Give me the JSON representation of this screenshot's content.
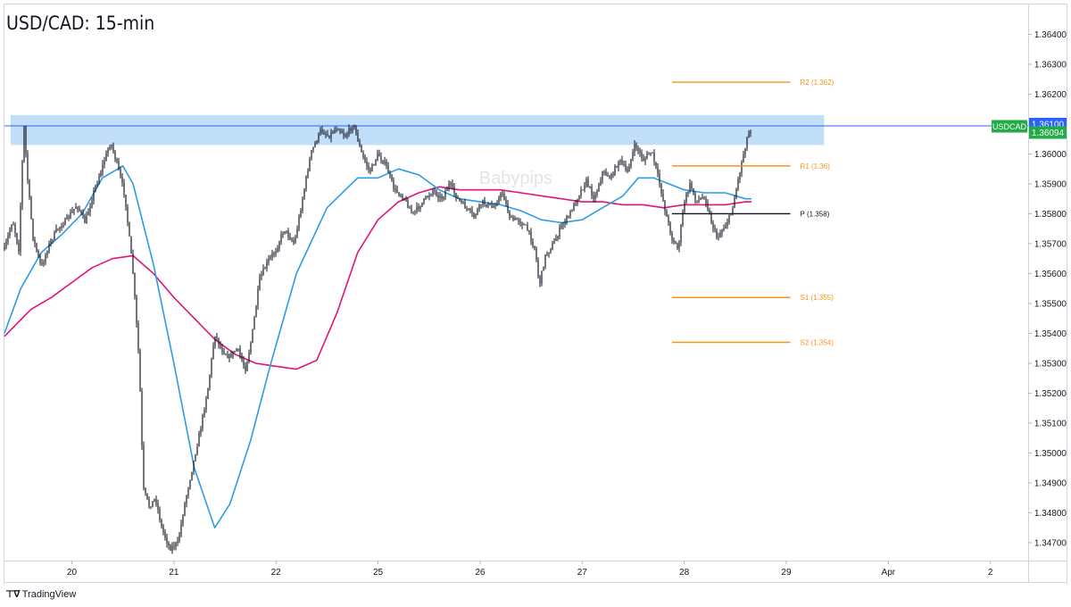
{
  "chart_data": {
    "type": "candlestick",
    "title": "USD/CAD: 15-min",
    "symbol": "USDCAD",
    "last_price": "1.36094",
    "range_high_label": "1.36100",
    "watermark": "Babypips",
    "y_ticks": [
      "1.36400",
      "1.36300",
      "1.36200",
      "1.36100",
      "1.36000",
      "1.35900",
      "1.35800",
      "1.35700",
      "1.35600",
      "1.35500",
      "1.35400",
      "1.35300",
      "1.35200",
      "1.35100",
      "1.35000",
      "1.34900",
      "1.34800",
      "1.34700"
    ],
    "y_tick_values": [
      1.364,
      1.363,
      1.362,
      1.361,
      1.36,
      1.359,
      1.358,
      1.357,
      1.356,
      1.355,
      1.354,
      1.353,
      1.352,
      1.351,
      1.35,
      1.349,
      1.348,
      1.347
    ],
    "ylim": [
      1.3464,
      1.365
    ],
    "x_ticks": [
      "20",
      "21",
      "22",
      "25",
      "26",
      "27",
      "28",
      "29",
      "Apr",
      "2"
    ],
    "x_tick_positions": [
      0,
      1,
      2,
      3,
      4,
      5,
      6,
      7,
      8,
      9
    ],
    "xlim": [
      -0.66,
      9.37
    ],
    "resistance_zone": [
      1.3603,
      1.3613
    ],
    "pivots": [
      {
        "label": "R2 (1.362)",
        "value": 1.3624,
        "color": "#f7931a"
      },
      {
        "label": "R1 (1.36)",
        "value": 1.3596,
        "color": "#f7931a"
      },
      {
        "label": "P (1.358)",
        "value": 1.358,
        "color": "#131722"
      },
      {
        "label": "S1 (1.355)",
        "value": 1.3552,
        "color": "#f7931a"
      },
      {
        "label": "S2 (1.354)",
        "value": 1.3537,
        "color": "#f7931a"
      }
    ],
    "pivot_x_range": [
      5.88,
      7.04
    ],
    "price_path": [
      [
        -0.66,
        1.3568
      ],
      [
        -0.58,
        1.3578
      ],
      [
        -0.52,
        1.3568
      ],
      [
        -0.47,
        1.361
      ],
      [
        -0.43,
        1.359
      ],
      [
        -0.38,
        1.3572
      ],
      [
        -0.3,
        1.3562
      ],
      [
        -0.22,
        1.357
      ],
      [
        -0.14,
        1.3575
      ],
      [
        -0.05,
        1.3578
      ],
      [
        0.05,
        1.3583
      ],
      [
        0.13,
        1.3577
      ],
      [
        0.22,
        1.3588
      ],
      [
        0.3,
        1.3596
      ],
      [
        0.38,
        1.3604
      ],
      [
        0.44,
        1.3597
      ],
      [
        0.52,
        1.3586
      ],
      [
        0.6,
        1.356
      ],
      [
        0.66,
        1.353
      ],
      [
        0.7,
        1.3488
      ],
      [
        0.76,
        1.3482
      ],
      [
        0.82,
        1.3485
      ],
      [
        0.88,
        1.3475
      ],
      [
        0.96,
        1.3468
      ],
      [
        1.04,
        1.347
      ],
      [
        1.1,
        1.3482
      ],
      [
        1.18,
        1.3495
      ],
      [
        1.26,
        1.3508
      ],
      [
        1.34,
        1.3523
      ],
      [
        1.4,
        1.354
      ],
      [
        1.46,
        1.3535
      ],
      [
        1.54,
        1.3532
      ],
      [
        1.62,
        1.3535
      ],
      [
        1.7,
        1.3528
      ],
      [
        1.76,
        1.3538
      ],
      [
        1.84,
        1.3558
      ],
      [
        1.92,
        1.3564
      ],
      [
        2.0,
        1.3568
      ],
      [
        2.08,
        1.3575
      ],
      [
        2.18,
        1.357
      ],
      [
        2.26,
        1.3585
      ],
      [
        2.34,
        1.36
      ],
      [
        2.44,
        1.3608
      ],
      [
        2.52,
        1.3606
      ],
      [
        2.6,
        1.3609
      ],
      [
        2.68,
        1.3606
      ],
      [
        2.76,
        1.361
      ],
      [
        2.84,
        1.36
      ],
      [
        2.92,
        1.3594
      ],
      [
        3.0,
        1.36
      ],
      [
        3.08,
        1.3596
      ],
      [
        3.16,
        1.3588
      ],
      [
        3.24,
        1.3586
      ],
      [
        3.34,
        1.358
      ],
      [
        3.44,
        1.3584
      ],
      [
        3.54,
        1.3588
      ],
      [
        3.62,
        1.3585
      ],
      [
        3.7,
        1.359
      ],
      [
        3.78,
        1.3585
      ],
      [
        3.86,
        1.3582
      ],
      [
        3.94,
        1.3579
      ],
      [
        4.02,
        1.3584
      ],
      [
        4.12,
        1.3582
      ],
      [
        4.22,
        1.3587
      ],
      [
        4.3,
        1.3578
      ],
      [
        4.38,
        1.3578
      ],
      [
        4.46,
        1.3575
      ],
      [
        4.54,
        1.3568
      ],
      [
        4.58,
        1.3556
      ],
      [
        4.64,
        1.3566
      ],
      [
        4.72,
        1.357
      ],
      [
        4.8,
        1.3576
      ],
      [
        4.88,
        1.358
      ],
      [
        4.96,
        1.3586
      ],
      [
        5.04,
        1.3591
      ],
      [
        5.12,
        1.3585
      ],
      [
        5.2,
        1.3594
      ],
      [
        5.28,
        1.3592
      ],
      [
        5.36,
        1.3598
      ],
      [
        5.44,
        1.3594
      ],
      [
        5.52,
        1.3603
      ],
      [
        5.6,
        1.3598
      ],
      [
        5.68,
        1.3601
      ],
      [
        5.76,
        1.359
      ],
      [
        5.82,
        1.358
      ],
      [
        5.88,
        1.3572
      ],
      [
        5.94,
        1.3568
      ],
      [
        6.0,
        1.3584
      ],
      [
        6.06,
        1.359
      ],
      [
        6.12,
        1.3584
      ],
      [
        6.2,
        1.3586
      ],
      [
        6.26,
        1.3578
      ],
      [
        6.32,
        1.3572
      ],
      [
        6.4,
        1.3576
      ],
      [
        6.46,
        1.358
      ],
      [
        6.52,
        1.359
      ],
      [
        6.58,
        1.36
      ],
      [
        6.62,
        1.3606
      ],
      [
        6.66,
        1.3609
      ]
    ],
    "ema_blue": [
      [
        -0.66,
        1.354
      ],
      [
        -0.5,
        1.3555
      ],
      [
        -0.3,
        1.3567
      ],
      [
        -0.1,
        1.3573
      ],
      [
        0.1,
        1.358
      ],
      [
        0.3,
        1.3592
      ],
      [
        0.5,
        1.3596
      ],
      [
        0.6,
        1.359
      ],
      [
        0.8,
        1.3563
      ],
      [
        1.0,
        1.353
      ],
      [
        1.2,
        1.3495
      ],
      [
        1.4,
        1.3475
      ],
      [
        1.55,
        1.3483
      ],
      [
        1.75,
        1.3504
      ],
      [
        1.95,
        1.353
      ],
      [
        2.2,
        1.356
      ],
      [
        2.5,
        1.3582
      ],
      [
        2.8,
        1.3592
      ],
      [
        3.0,
        1.3592
      ],
      [
        3.2,
        1.3595
      ],
      [
        3.4,
        1.3593
      ],
      [
        3.6,
        1.3588
      ],
      [
        3.8,
        1.3585
      ],
      [
        4.0,
        1.3584
      ],
      [
        4.2,
        1.3583
      ],
      [
        4.4,
        1.3581
      ],
      [
        4.6,
        1.3578
      ],
      [
        4.8,
        1.3577
      ],
      [
        5.0,
        1.3578
      ],
      [
        5.2,
        1.3582
      ],
      [
        5.4,
        1.3586
      ],
      [
        5.55,
        1.3592
      ],
      [
        5.7,
        1.3592
      ],
      [
        5.85,
        1.359
      ],
      [
        6.0,
        1.3588
      ],
      [
        6.2,
        1.3587
      ],
      [
        6.4,
        1.3587
      ],
      [
        6.6,
        1.3585
      ],
      [
        6.66,
        1.3585
      ]
    ],
    "ema_magenta": [
      [
        -0.66,
        1.3539
      ],
      [
        -0.4,
        1.3548
      ],
      [
        -0.2,
        1.3552
      ],
      [
        0.0,
        1.3557
      ],
      [
        0.2,
        1.3562
      ],
      [
        0.4,
        1.3565
      ],
      [
        0.6,
        1.3566
      ],
      [
        0.8,
        1.356
      ],
      [
        1.0,
        1.3552
      ],
      [
        1.2,
        1.3545
      ],
      [
        1.4,
        1.3538
      ],
      [
        1.6,
        1.3533
      ],
      [
        1.8,
        1.353
      ],
      [
        2.0,
        1.3529
      ],
      [
        2.2,
        1.3528
      ],
      [
        2.4,
        1.3531
      ],
      [
        2.6,
        1.3547
      ],
      [
        2.8,
        1.3567
      ],
      [
        3.0,
        1.3578
      ],
      [
        3.2,
        1.3584
      ],
      [
        3.4,
        1.3587
      ],
      [
        3.6,
        1.3589
      ],
      [
        3.8,
        1.3588
      ],
      [
        4.0,
        1.3588
      ],
      [
        4.2,
        1.3588
      ],
      [
        4.4,
        1.3587
      ],
      [
        4.6,
        1.3586
      ],
      [
        4.8,
        1.3585
      ],
      [
        5.0,
        1.3584
      ],
      [
        5.2,
        1.3584
      ],
      [
        5.4,
        1.3583
      ],
      [
        5.6,
        1.3583
      ],
      [
        5.8,
        1.3582
      ],
      [
        6.0,
        1.3583
      ],
      [
        6.2,
        1.3583
      ],
      [
        6.4,
        1.3583
      ],
      [
        6.6,
        1.3584
      ],
      [
        6.66,
        1.3584
      ]
    ],
    "series_colors": {
      "price": "#131722",
      "ema_blue": "#2c9ce6",
      "ema_magenta": "#e0157a",
      "last_price_line": "#2962ff",
      "last_price_badge": "#22ab46",
      "range_high_badge": "#2962ff",
      "zone": "#90c4f5"
    },
    "grid": false
  },
  "branding": {
    "name": "TradingView",
    "icon": "tradingview-logo-icon"
  }
}
